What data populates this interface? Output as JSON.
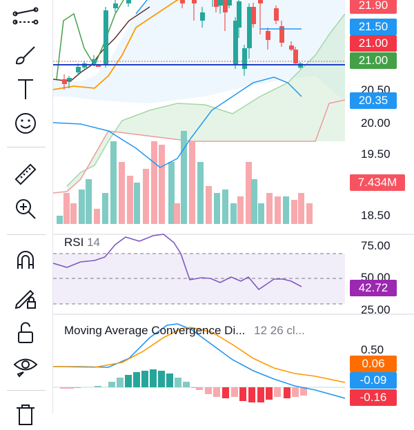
{
  "toolbar": {
    "tools": [
      "trend-line-tool",
      "brush-tool",
      "text-tool",
      "emoji-tool",
      "measure-tool",
      "zoom-in-tool",
      "magnet-tool",
      "lock-drawing-tool",
      "unlock-tool",
      "visibility-tool",
      "delete-tool"
    ]
  },
  "price_pane": {
    "axis_ticks": [
      "20.50",
      "20.00",
      "19.50",
      "18.50"
    ],
    "badges": [
      {
        "label": "21.90",
        "bg": "#f7525f",
        "fg": "#ffffff"
      },
      {
        "label": "21.50",
        "bg": "#2196f3",
        "fg": "#ffffff"
      },
      {
        "label": "21.00",
        "bg": "#f23645",
        "fg": "#ffffff"
      },
      {
        "label": "21.00",
        "bg": "#43a047",
        "fg": "#ffffff"
      },
      {
        "label": "20.35",
        "bg": "#2196f3",
        "fg": "#ffffff"
      },
      {
        "label": "7.434M",
        "bg": "#f7525f",
        "fg": "#ffffff"
      }
    ]
  },
  "rsi_pane": {
    "name": "RSI",
    "param": "14",
    "axis_ticks": [
      "75.00",
      "50.00",
      "25.00"
    ],
    "value_badge": {
      "label": "42.72",
      "bg": "#9c27b0"
    }
  },
  "macd_pane": {
    "name": "Moving Average Convergence Di...",
    "params": "12 26 cl...",
    "axis_ticks": [
      "0.50"
    ],
    "badges": [
      {
        "label": "0.06",
        "bg": "#ff6d00"
      },
      {
        "label": "-0.09",
        "bg": "#2196f3"
      },
      {
        "label": "-0.16",
        "bg": "#f23645"
      }
    ]
  },
  "colors": {
    "up": "#26a69a",
    "down": "#ef5350",
    "rsi": "#7e57c2",
    "macd": "#2196f3",
    "signal": "#ff9800"
  }
}
